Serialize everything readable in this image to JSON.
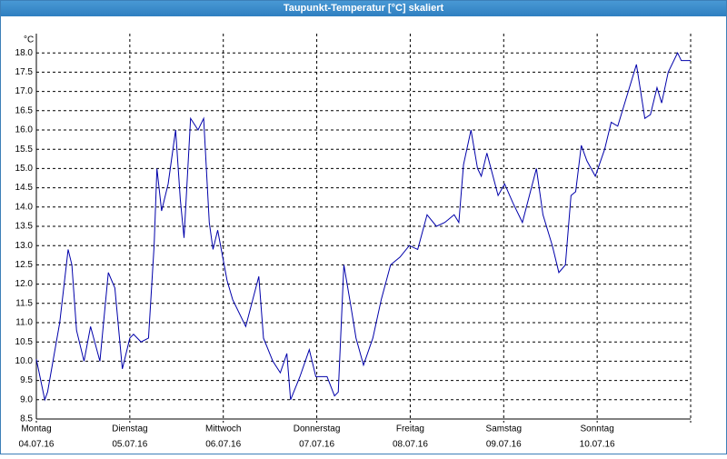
{
  "chart_data": {
    "type": "line",
    "title": "Taupunkt-Temperatur [°C] skaliert",
    "y_unit": "°C",
    "xlim": [
      0,
      7
    ],
    "xticks": [
      {
        "value": 0,
        "label": [
          "Montag",
          "04.07.16"
        ]
      },
      {
        "value": 1,
        "label": [
          "Dienstag",
          "05.07.16"
        ]
      },
      {
        "value": 2,
        "label": [
          "Mittwoch",
          "06.07.16"
        ]
      },
      {
        "value": 3,
        "label": [
          "Donnerstag",
          "07.07.16"
        ]
      },
      {
        "value": 4,
        "label": [
          "Freitag",
          "08.07.16"
        ]
      },
      {
        "value": 5,
        "label": [
          "Samstag",
          "09.07.16"
        ]
      },
      {
        "value": 6,
        "label": [
          "Sonntag",
          "10.07.16"
        ]
      },
      {
        "value": 7,
        "label": [
          "",
          ""
        ]
      }
    ],
    "ylim": [
      8.5,
      18.5
    ],
    "yticks": [
      8.5,
      {
        "value": 9,
        "label": "9.0"
      },
      9.5,
      {
        "value": 10,
        "label": "10.0"
      },
      10.5,
      {
        "value": 11,
        "label": "11.0"
      },
      11.5,
      {
        "value": 12,
        "label": "12.0"
      },
      12.5,
      {
        "value": 13,
        "label": "13.0"
      },
      13.5,
      {
        "value": 14,
        "label": "14.0"
      },
      14.5,
      {
        "value": 15,
        "label": "15.0"
      },
      15.5,
      {
        "value": 16,
        "label": "16.0"
      },
      16.5,
      {
        "value": 17,
        "label": "17.0"
      },
      17.5,
      {
        "value": 18,
        "label": "18.0"
      }
    ],
    "grid": true,
    "series": [
      {
        "color": "#0000aa",
        "x": [
          0,
          0.09,
          0.12,
          0.25,
          0.34,
          0.38,
          0.43,
          0.51,
          0.58,
          0.68,
          0.77,
          0.84,
          0.92,
          1.0,
          1.04,
          1.12,
          1.2,
          1.26,
          1.29,
          1.34,
          1.41,
          1.49,
          1.54,
          1.58,
          1.65,
          1.73,
          1.79,
          1.85,
          1.89,
          1.94,
          2.04,
          2.1,
          2.24,
          2.38,
          2.43,
          2.53,
          2.61,
          2.68,
          2.72,
          2.82,
          2.92,
          2.99,
          3.11,
          3.19,
          3.23,
          3.29,
          3.36,
          3.42,
          3.5,
          3.6,
          3.69,
          3.79,
          3.89,
          3.99,
          4.08,
          4.18,
          4.28,
          4.37,
          4.47,
          4.52,
          4.57,
          4.65,
          4.72,
          4.76,
          4.82,
          4.94,
          5.01,
          5.1,
          5.2,
          5.35,
          5.42,
          5.52,
          5.59,
          5.66,
          5.72,
          5.77,
          5.83,
          5.89,
          5.98,
          6.08,
          6.15,
          6.22,
          6.32,
          6.42,
          6.51,
          6.57,
          6.64,
          6.69,
          6.76,
          6.86,
          6.9,
          7.0
        ],
        "values": [
          10.05,
          9.0,
          9.2,
          11.0,
          12.9,
          12.5,
          10.8,
          10.0,
          10.9,
          10.0,
          12.3,
          11.9,
          9.8,
          10.6,
          10.7,
          10.5,
          10.6,
          13.0,
          15.0,
          13.9,
          14.6,
          16.0,
          14.2,
          13.2,
          16.3,
          16.0,
          16.3,
          13.6,
          12.9,
          13.4,
          12.1,
          11.6,
          10.9,
          12.2,
          10.6,
          10.0,
          9.7,
          10.2,
          9.0,
          9.6,
          10.3,
          9.6,
          9.6,
          9.1,
          9.2,
          12.5,
          11.5,
          10.6,
          9.9,
          10.6,
          11.6,
          12.5,
          12.7,
          13.0,
          12.9,
          13.8,
          13.5,
          13.6,
          13.8,
          13.6,
          15.1,
          16.0,
          15.0,
          14.8,
          15.4,
          14.3,
          14.6,
          14.1,
          13.6,
          15.0,
          13.8,
          13.0,
          12.3,
          12.5,
          14.3,
          14.4,
          15.6,
          15.2,
          14.8,
          15.5,
          16.2,
          16.1,
          16.9,
          17.7,
          16.3,
          16.4,
          17.1,
          16.7,
          17.5,
          18.0,
          17.8,
          17.8
        ]
      }
    ]
  }
}
